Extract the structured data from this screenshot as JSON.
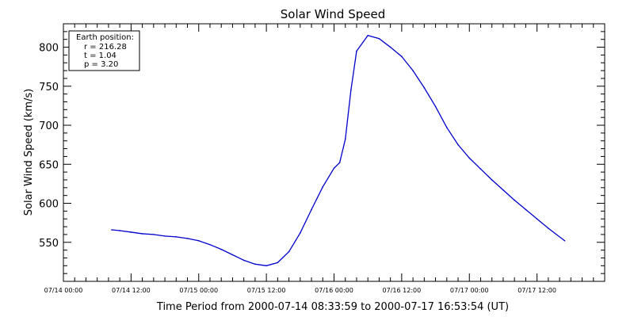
{
  "chart_data": {
    "type": "line",
    "title": "Solar Wind Speed",
    "xlabel": "Time Period from 2000-07-14 08:33:59 to 2000-07-17 16:53:54 (UT)",
    "ylabel": "Solar Wind Speed (km/s)",
    "xlim": [
      "07/14 00:00",
      "07/18 00:00"
    ],
    "ylim": [
      500,
      830
    ],
    "x_tick_labels": [
      "07/14 00:00",
      "07/14 12:00",
      "07/15 00:00",
      "07/15 12:00",
      "07/16 00:00",
      "07/16 12:00",
      "07/17 00:00",
      "07/17 12:00"
    ],
    "y_tick_labels": [
      "550",
      "600",
      "650",
      "700",
      "750",
      "800"
    ],
    "grid": false,
    "series_color": "#0000cc",
    "annotation": {
      "lines": [
        "Earth position:",
        "r = 216.28",
        "t = 1.04",
        "p = 3.20"
      ]
    },
    "series": [
      {
        "x": [
          "07/14 08:34",
          "07/14 10:00",
          "07/14 12:00",
          "07/14 14:00",
          "07/14 16:00",
          "07/14 18:00",
          "07/14 20:00",
          "07/14 22:00",
          "07/15 00:00",
          "07/15 02:00",
          "07/15 04:00",
          "07/15 06:00",
          "07/15 08:00",
          "07/15 10:00",
          "07/15 12:00",
          "07/15 14:00",
          "07/15 16:00",
          "07/15 18:00",
          "07/15 20:00",
          "07/15 22:00",
          "07/16 00:00",
          "07/16 01:00",
          "07/16 02:00",
          "07/16 03:00",
          "07/16 04:00",
          "07/16 06:00",
          "07/16 08:00",
          "07/16 10:00",
          "07/16 12:00",
          "07/16 14:00",
          "07/16 16:00",
          "07/16 18:00",
          "07/16 20:00",
          "07/16 22:00",
          "07/17 00:00",
          "07/17 02:00",
          "07/17 04:00",
          "07/17 06:00",
          "07/17 08:00",
          "07/17 10:00",
          "07/17 12:00",
          "07/17 14:00",
          "07/17 16:54"
        ],
        "y": [
          566,
          565,
          563,
          561,
          560,
          558,
          557,
          555,
          552,
          547,
          541,
          534,
          527,
          522,
          520,
          524,
          538,
          562,
          592,
          621,
          645,
          652,
          682,
          745,
          795,
          815,
          811,
          800,
          788,
          770,
          748,
          724,
          697,
          675,
          658,
          644,
          630,
          617,
          604,
          592,
          580,
          568,
          552
        ]
      }
    ]
  }
}
